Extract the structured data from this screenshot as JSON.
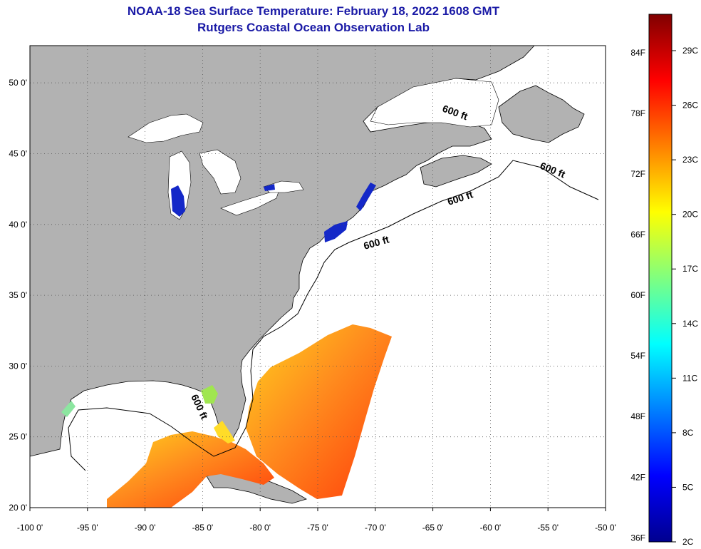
{
  "title": {
    "line1": "NOAA-18 Sea Surface Temperature:  February 18, 2022 1608 GMT",
    "line2": "Rutgers Coastal Ocean Observation Lab"
  },
  "map": {
    "lon_ticks": [
      "-100 0'",
      "-95 0'",
      "-90 0'",
      "-85 0'",
      "-80 0'",
      "-75 0'",
      "-70 0'",
      "-65 0'",
      "-60 0'",
      "-55 0'",
      "-50 0'"
    ],
    "lat_ticks": [
      "20 0'",
      "25 0'",
      "30 0'",
      "35 0'",
      "40 0'",
      "45 0'",
      "50 0'"
    ],
    "contour_labels": [
      "600 ft",
      "600 ft",
      "600 ft",
      "600 ft",
      "600 ft"
    ],
    "colors": {
      "land": "#b2b2b2",
      "lake_ice": "#ffffff",
      "ocean_nodata": "#ffffff",
      "warm": "#ff5a14",
      "cold": "#1428c8"
    }
  },
  "colorbar": {
    "f_labels": [
      "84F",
      "78F",
      "72F",
      "66F",
      "60F",
      "54F",
      "48F",
      "42F",
      "36F"
    ],
    "c_labels": [
      "29C",
      "26C",
      "23C",
      "20C",
      "17C",
      "14C",
      "11C",
      "8C",
      "5C",
      "2C"
    ],
    "colormap": "jet",
    "range_c": [
      2,
      31
    ]
  }
}
